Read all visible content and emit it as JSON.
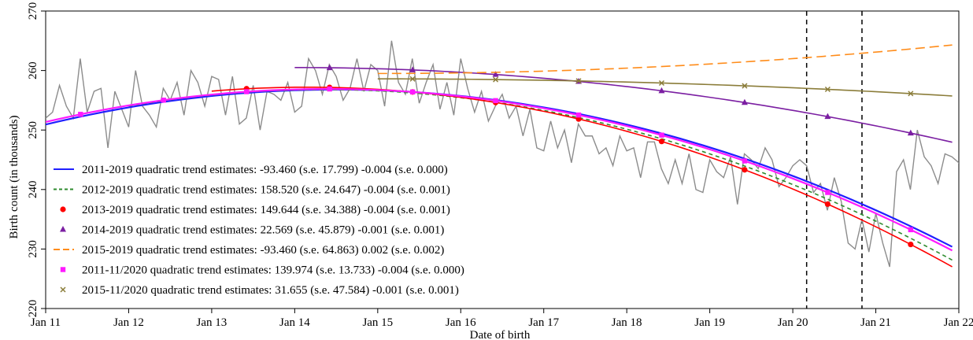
{
  "chart_data": {
    "type": "line",
    "xlabel": "Date of birth",
    "ylabel": "Birth count (in thousands)",
    "xlim": [
      "2011-01-01",
      "2022-01-01"
    ],
    "ylim": [
      220,
      270
    ],
    "x_ticks": [
      "2011-01-01",
      "2012-01-01",
      "2013-01-01",
      "2014-01-01",
      "2015-01-01",
      "2016-01-01",
      "2017-01-01",
      "2018-01-01",
      "2019-01-01",
      "2020-01-01",
      "2021-01-01",
      "2022-01-01"
    ],
    "x_tick_labels": [
      "Jan 11",
      "Jan 12",
      "Jan 13",
      "Jan 14",
      "Jan 15",
      "Jan 16",
      "Jan 17",
      "Jan 18",
      "Jan 19",
      "Jan 20",
      "Jan 21",
      "Jan 22"
    ],
    "y_ticks": [
      220,
      230,
      240,
      250,
      260,
      270
    ],
    "y_tick_labels": [
      "220",
      "230",
      "240",
      "250",
      "260",
      "270"
    ],
    "grid": false,
    "legend_position": "bottom-left",
    "vertical_lines": [
      "2020-03-01",
      "2020-11-01"
    ],
    "observed_series": {
      "color": "#8c8c8c",
      "start": "2011-01",
      "values": [
        252,
        253,
        257.5,
        254,
        252,
        262,
        253,
        256.5,
        257,
        247,
        256.5,
        253.5,
        250.5,
        260,
        254,
        252.5,
        250.5,
        257,
        255,
        258,
        252.5,
        260,
        258,
        254,
        259,
        258.5,
        252.5,
        259,
        251,
        252,
        257.5,
        250,
        256.5,
        256,
        255,
        258,
        253,
        254,
        262,
        260,
        256,
        261,
        259,
        255,
        257,
        262,
        256.5,
        261,
        260,
        254,
        265,
        258,
        256,
        262,
        254.5,
        258,
        261,
        253.5,
        258,
        252.5,
        262,
        257,
        253,
        256.5,
        251.5,
        254,
        256,
        252,
        254,
        249,
        253.5,
        247,
        246.5,
        251.5,
        247,
        250,
        244.5,
        251,
        249,
        249,
        246,
        247,
        244,
        249,
        246.5,
        247,
        242,
        248,
        248,
        243.5,
        241,
        245,
        241,
        246,
        240,
        239.5,
        245,
        243,
        242,
        245.5,
        237.5,
        246,
        245,
        243.5,
        247,
        245,
        240.5,
        242,
        244,
        245,
        244,
        239.5,
        241,
        236.5,
        242,
        238,
        231,
        230,
        235,
        229.5,
        236,
        231,
        227,
        243,
        245,
        240,
        250,
        245.5,
        244,
        241,
        246,
        245.5,
        244.5,
        244
      ]
    },
    "trend_curves": [
      {
        "name": "2011-2019 quadratic trend estimates: -93.460 (s.e. 17.799) -0.004 (s.e. 0.000)",
        "color": "#1f1fff",
        "dash": "",
        "marker": "",
        "x": [
          2011.0,
          2021.92
        ],
        "a": 256.8,
        "x0": 2014.5,
        "c": 0.48
      },
      {
        "name": "2012-2019 quadratic trend estimates: 158.520 (s.e. 24.647) -0.004 (s.e. 0.001)",
        "color": "#2e8b2e",
        "dash": "5,4",
        "marker": "",
        "x": [
          2012.0,
          2021.92
        ],
        "a": 256.8,
        "x0": 2014.35,
        "c": 0.5
      },
      {
        "name": "2013-2019 quadratic trend estimates: 149.644 (s.e. 34.388) -0.004 (s.e. 0.001)",
        "color": "#ff0000",
        "dash": "",
        "marker": "circle",
        "x": [
          2013.0,
          2021.92
        ],
        "a": 257.2,
        "x0": 2014.15,
        "c": 0.5
      },
      {
        "name": "2014-2019 quadratic trend estimates: 22.569 (s.e. 45.879) -0.001 (s.e. 0.001)",
        "color": "#7b1fa2",
        "dash": "",
        "marker": "triangle",
        "x": [
          2014.0,
          2021.92
        ],
        "a": 260.5,
        "x0": 2014.0,
        "c": 0.2
      },
      {
        "name": "2015-2019 quadratic trend estimates: -93.460 (s.e. 64.863) 0.002 (s.e. 0.002)",
        "color": "#ff8c1a",
        "dash": "12,6",
        "marker": "",
        "x": [
          2015.0,
          2021.92
        ],
        "a": 259.5,
        "x0": 2015.0,
        "c": -0.1
      },
      {
        "name": "2011-11/2020 quadratic trend estimates: 139.974 (s.e. 13.733) -0.004 (s.e. 0.000)",
        "color": "#ff1aff",
        "dash": "",
        "marker": "square",
        "x": [
          2011.0,
          2021.92
        ],
        "a": 256.9,
        "x0": 2014.4,
        "c": 0.48
      },
      {
        "name": "2015-11/2020 quadratic trend estimates: 31.655 (s.e. 47.584) -0.001 (s.e. 0.001)",
        "color": "#8b7d3a",
        "dash": "",
        "marker": "cross",
        "x": [
          2015.0,
          2021.92
        ],
        "a": 258.6,
        "x0": 2015.0,
        "c": 0.06
      }
    ]
  }
}
